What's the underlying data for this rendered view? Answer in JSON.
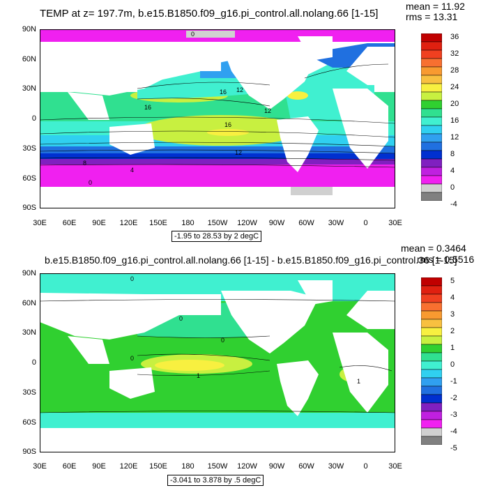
{
  "panels": [
    {
      "title": "TEMP at z= 197.7m, b.e15.B1850.f09_g16.pi_control.all.nolang.66 [1-15]",
      "mean": "mean = 11.92",
      "rms": "rms = 13.31",
      "range_text": "-1.95 to 28.53 by 2 degC",
      "colorbar": {
        "labels": [
          "36",
          "32",
          "28",
          "24",
          "20",
          "16",
          "12",
          "8",
          "4",
          "0",
          "-4"
        ],
        "colors": [
          "#c00000",
          "#e02010",
          "#f04020",
          "#f87030",
          "#f89a30",
          "#f8c040",
          "#f8f040",
          "#c8f040",
          "#30d030",
          "#30e090",
          "#40f0d0",
          "#30d0f0",
          "#30a0f0",
          "#2070e0",
          "#0030d0",
          "#8020c0",
          "#c020e0",
          "#f020f0",
          "#d0d0d0",
          "#808080"
        ]
      },
      "contour_labels": [
        "16",
        "12",
        "16",
        "12",
        "16",
        "12",
        "8",
        "4",
        "0",
        "0"
      ]
    },
    {
      "title": "b.e15.B1850.f09_g16.pi_control.all.nolang.66 [1-15] - b.e15.B1850.f09_g16.pi_control.36 [1-15]",
      "mean": "mean = 0.3464",
      "rms": "rms = 0.5516",
      "range_text": "-3.041 to 3.878 by .5 degC",
      "colorbar": {
        "labels": [
          "5",
          "4",
          "3",
          "2",
          "1",
          "0",
          "-1",
          "-2",
          "-3",
          "-4",
          "-5"
        ],
        "colors": [
          "#c00000",
          "#e02010",
          "#f04020",
          "#f87030",
          "#f89a30",
          "#f8c040",
          "#f8f040",
          "#c8f040",
          "#30d030",
          "#30e090",
          "#40f0d0",
          "#30d0f0",
          "#30a0f0",
          "#2070e0",
          "#0030d0",
          "#8020c0",
          "#c020e0",
          "#f020f0",
          "#d0d0d0",
          "#808080"
        ]
      },
      "contour_labels": [
        "0",
        "0",
        "0",
        "1",
        "1",
        "0"
      ]
    }
  ],
  "y_ticks": [
    "90N",
    "60N",
    "30N",
    "0",
    "30S",
    "60S",
    "90S"
  ],
  "x_ticks": [
    "30E",
    "60E",
    "90E",
    "120E",
    "150E",
    "180",
    "150W",
    "120W",
    "90W",
    "60W",
    "30W",
    "0",
    "30E"
  ]
}
